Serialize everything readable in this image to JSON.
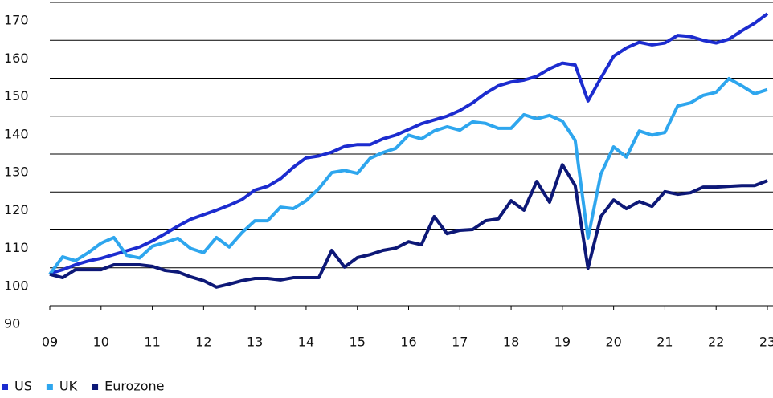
{
  "chart_data": {
    "type": "line",
    "x": [
      2009,
      2009.25,
      2009.5,
      2009.75,
      2010,
      2010.25,
      2010.5,
      2010.75,
      2011,
      2011.25,
      2011.5,
      2011.75,
      2012,
      2012.25,
      2012.5,
      2012.75,
      2013,
      2013.25,
      2013.5,
      2013.75,
      2014,
      2014.25,
      2014.5,
      2014.75,
      2015,
      2015.25,
      2015.5,
      2015.75,
      2016,
      2016.25,
      2016.5,
      2016.75,
      2017,
      2017.25,
      2017.5,
      2017.75,
      2018,
      2018.25,
      2018.5,
      2018.75,
      2019,
      2019.25,
      2019.5,
      2019.75,
      2020,
      2020.25,
      2020.5,
      2020.75,
      2021,
      2021.25,
      2021.5,
      2021.75,
      2022,
      2022.25,
      2022.5,
      2022.75,
      2023
    ],
    "series": [
      {
        "name": "US",
        "color": "#1c2ccf",
        "values": [
          98.5,
          99.5,
          100.8,
          101.8,
          102.5,
          103.5,
          104.5,
          105.5,
          107.1,
          109,
          111,
          112.8,
          114,
          115.2,
          116.5,
          118,
          120.5,
          121.5,
          123.5,
          126.5,
          129,
          129.5,
          130.5,
          132,
          132.5,
          132.5,
          134,
          135,
          136.5,
          138,
          139,
          140,
          141.5,
          143.5,
          146,
          148,
          149,
          149.5,
          150.5,
          152.5,
          154,
          153.5,
          144,
          150,
          155.8,
          158,
          159.5,
          158.8,
          159.3,
          161.3,
          161,
          160,
          159.3,
          160.3,
          162.5,
          164.5,
          167
        ]
      },
      {
        "name": "UK",
        "color": "#2ea6ee",
        "values": [
          98.3,
          102.9,
          101.9,
          104,
          106.5,
          108,
          103.3,
          102.6,
          105.7,
          106.7,
          107.8,
          105.1,
          104,
          108,
          105.5,
          109.3,
          112.4,
          112.4,
          116,
          115.6,
          117.7,
          120.9,
          125.1,
          125.7,
          124.9,
          128.9,
          130.4,
          131.5,
          135,
          134,
          136.1,
          137.2,
          136.3,
          138.5,
          138.1,
          136.8,
          136.8,
          140.4,
          139.3,
          140.2,
          138.7,
          133.6,
          107.8,
          124.7,
          131.9,
          129.2,
          136.1,
          135,
          135.7,
          142.7,
          143.5,
          145.5,
          146.3,
          149.9,
          148,
          145.9,
          147
        ]
      },
      {
        "name": "Eurozone",
        "color": "#0d1877",
        "values": [
          98.3,
          97.4,
          99.5,
          99.5,
          99.5,
          100.8,
          100.8,
          100.8,
          100.4,
          99.3,
          98.9,
          97.6,
          96.6,
          94.9,
          95.7,
          96.6,
          97.2,
          97.2,
          96.8,
          97.4,
          97.4,
          97.4,
          104.6,
          100.2,
          102.7,
          103.5,
          104.6,
          105.2,
          106.9,
          106.1,
          113.5,
          109,
          109.9,
          110.1,
          112.4,
          112.9,
          117.7,
          115.2,
          122.8,
          117.3,
          127.2,
          121.7,
          99.9,
          113.5,
          117.9,
          115.6,
          117.5,
          116.2,
          120.1,
          119.4,
          119.8,
          121.3,
          121.3,
          121.5,
          121.7,
          121.7,
          123
        ]
      }
    ],
    "xlim": [
      2009,
      2023
    ],
    "xticks": [
      {
        "value": 2009,
        "label": "09"
      },
      {
        "value": 2010,
        "label": "10"
      },
      {
        "value": 2011,
        "label": "11"
      },
      {
        "value": 2012,
        "label": "12"
      },
      {
        "value": 2013,
        "label": "13"
      },
      {
        "value": 2014,
        "label": "14"
      },
      {
        "value": 2015,
        "label": "15"
      },
      {
        "value": 2016,
        "label": "16"
      },
      {
        "value": 2017,
        "label": "17"
      },
      {
        "value": 2018,
        "label": "18"
      },
      {
        "value": 2019,
        "label": "19"
      },
      {
        "value": 2020,
        "label": "20"
      },
      {
        "value": 2021,
        "label": "21"
      },
      {
        "value": 2022,
        "label": "22"
      },
      {
        "value": 2023,
        "label": "23"
      }
    ],
    "ylim": [
      90,
      170
    ],
    "yticks": [
      90,
      100,
      110,
      120,
      130,
      140,
      150,
      160,
      170
    ],
    "grid": true,
    "legend": "bottom-left"
  }
}
